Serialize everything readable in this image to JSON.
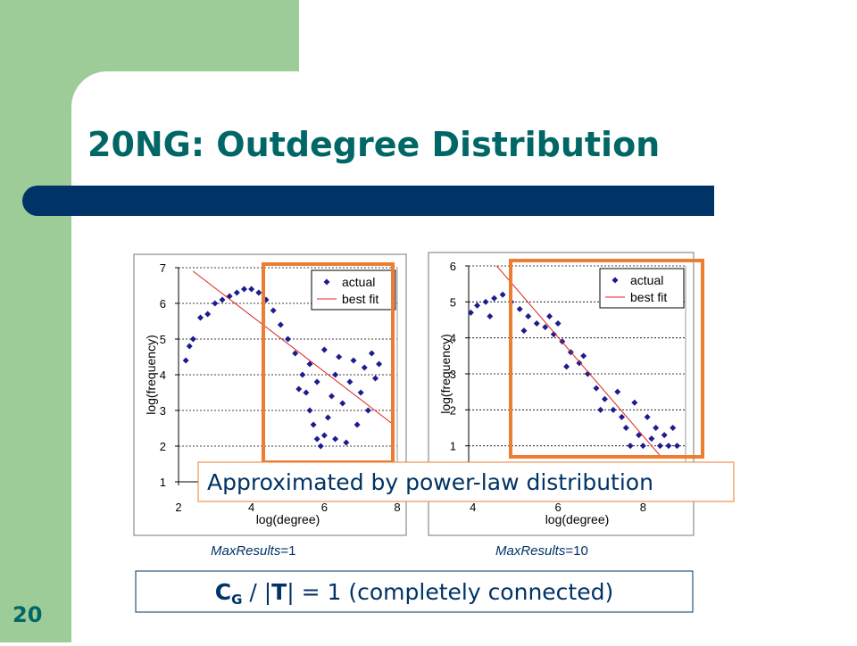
{
  "slide": {
    "title": "20NG: Outdegree Distribution",
    "callout": "Approximated by power-law distribution",
    "captions": [
      {
        "italic": "MaxResults",
        "rest": "=1"
      },
      {
        "italic": "MaxResults",
        "rest": "=10"
      }
    ],
    "formula": {
      "c": "C",
      "sub": "G",
      "mid1": " / |",
      "t": "T",
      "mid2": "| = 1 (completely connected)"
    },
    "page_number": "20"
  },
  "chart_data": [
    {
      "type": "scatter",
      "xlabel": "log(degree)",
      "ylabel": "log(frequency)",
      "xlim": [
        2,
        8
      ],
      "ylim": [
        1,
        7
      ],
      "xticks": [
        2,
        4,
        6,
        8
      ],
      "yticks": [
        1,
        2,
        3,
        4,
        5,
        6,
        7
      ],
      "grid": true,
      "legend": "upper right",
      "series": [
        {
          "name": "actual",
          "color": "#1c1c8f",
          "marker": "diamond",
          "x": [
            2.2,
            2.3,
            2.4,
            2.6,
            2.8,
            3.0,
            3.2,
            3.4,
            3.6,
            3.8,
            4.0,
            4.2,
            4.4,
            4.6,
            4.8,
            5.0,
            5.2,
            5.4,
            5.5,
            5.6,
            5.7,
            5.8,
            5.9,
            6.0,
            6.1,
            6.2,
            6.3,
            6.4,
            6.5,
            6.6,
            6.7,
            6.8,
            6.9,
            7.0,
            7.1,
            7.2,
            7.3,
            7.4,
            7.5,
            5.3,
            5.6,
            6.0,
            5.8,
            6.3
          ],
          "values": [
            4.4,
            4.8,
            5.0,
            5.6,
            5.7,
            6.0,
            6.1,
            6.2,
            6.3,
            6.4,
            6.4,
            6.3,
            6.1,
            5.8,
            5.4,
            5.0,
            4.6,
            4.0,
            3.5,
            3.0,
            2.6,
            2.2,
            2.0,
            2.3,
            2.8,
            3.4,
            4.0,
            4.5,
            3.2,
            2.1,
            3.8,
            4.4,
            2.6,
            3.5,
            4.2,
            3.0,
            4.6,
            3.9,
            4.3,
            3.6,
            4.3,
            4.7,
            3.8,
            2.2
          ]
        },
        {
          "name": "best fit",
          "color": "#e02020",
          "marker": "line",
          "x": [
            2.4,
            7.9
          ],
          "values": [
            6.9,
            2.6
          ]
        }
      ]
    },
    {
      "type": "scatter",
      "xlabel": "log(degree)",
      "ylabel": "log(frequency)",
      "xlim": [
        3.9,
        9
      ],
      "ylim": [
        0,
        6
      ],
      "xticks": [
        4,
        6,
        8
      ],
      "yticks": [
        1,
        2,
        3,
        4,
        5,
        6
      ],
      "grid": true,
      "legend": "upper right",
      "series": [
        {
          "name": "actual",
          "color": "#1c1c8f",
          "marker": "diamond",
          "x": [
            3.95,
            4.1,
            4.3,
            4.5,
            4.7,
            4.9,
            5.1,
            5.3,
            5.5,
            5.7,
            5.9,
            6.1,
            6.3,
            6.5,
            6.7,
            6.9,
            7.1,
            7.3,
            7.5,
            7.6,
            7.7,
            7.8,
            7.9,
            8.0,
            8.1,
            8.2,
            8.3,
            8.4,
            8.5,
            8.6,
            8.7,
            8.8,
            5.2,
            5.8,
            6.2,
            6.6,
            7.0,
            7.4,
            4.4,
            6.0
          ],
          "values": [
            4.7,
            4.9,
            5.0,
            5.1,
            5.2,
            5.0,
            4.8,
            4.6,
            4.4,
            4.3,
            4.1,
            3.9,
            3.6,
            3.3,
            3.0,
            2.6,
            2.3,
            2.0,
            1.8,
            1.5,
            1.0,
            2.2,
            1.3,
            1.0,
            1.8,
            1.2,
            1.5,
            1.0,
            1.3,
            1.0,
            1.5,
            1.0,
            4.2,
            4.6,
            3.2,
            3.5,
            2.0,
            2.5,
            4.6,
            4.4
          ]
        },
        {
          "name": "best fit",
          "color": "#e02020",
          "marker": "line",
          "x": [
            4.53,
            8.42
          ],
          "values": [
            6.04,
            0.7
          ]
        }
      ]
    }
  ]
}
